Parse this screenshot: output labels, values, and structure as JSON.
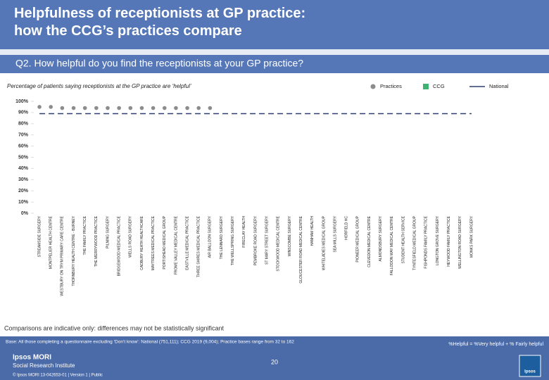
{
  "chart_data": {
    "type": "dot",
    "title": "Helpfulness of receptionists at GP practice: how the CCG’s practices compare",
    "question": "Q2. How helpful do you find the receptionists at your GP practice?",
    "subtitle": "Percentage of patients saying receptionists at the GP practice are ‘helpful’",
    "categories": [
      "STREAMSIDE SURGERY",
      "MONTPELIER HEALTH CENTRE",
      "WESTBURY ON TRYM PRIMARY CARE CENTRE",
      "THORNBURY HEALTH CENTRE - BURNEY",
      "THE FAMILY PRACTICE",
      "THE MERRYWOOD PRACTICE",
      "PILNING SURGERY",
      "BRIDGEWOOD MEDICAL PRACTICE",
      "WELLS ROAD SURGERY",
      "CADBURY HEATH HEALTHCARE",
      "MAYTREES MEDICAL PRACTICE",
      "PORTISHEAD MEDICAL GROUP",
      "FROME VALLEY MEDICAL CENTRE",
      "EASTVILLE MEDICAL PRACTICE",
      "THREE SHIRES MEDICAL PRACTICE",
      "AIR BALLOON SURGERY",
      "THE LENNARD SURGERY",
      "THE WELLSPRING SURGERY",
      "FIRECLAY HEALTH",
      "PEMBROKE ROAD SURGERY",
      "ST MARY STREET SURGERY",
      "STOCKWOOD MEDICAL CENTRE",
      "WINSCOMBE SURGERY",
      "GLOUCESTER ROAD MEDICAL CENTRE",
      "HANHAM HEALTH",
      "WHITELADIES MEDICAL GROUP",
      "SEA MILLS SURGERY",
      "HORFIELD HC",
      "PIONEER MEDICAL GROUP",
      "CLEVEDON MEDICAL CENTRE",
      "ALMONDSBURY SURGERY",
      "FALLODON WAY MEDICAL CENTRE",
      "STUDENT HEALTH SERVICE",
      "TYNTESFIELD MEDICAL GROUP",
      "FISHPONDS FAMILY PRACTICE",
      "LONGTON GROVE SURGERY",
      "HEYWOOD FAMILY PRACTICE",
      "WELLINGTON ROAD SURGERY",
      "MONKS PARK SURGERY"
    ],
    "series": [
      {
        "name": "Practices",
        "color": "#8c8c8c",
        "mark": "dot",
        "values": [
          95,
          95,
          94,
          94,
          94,
          94,
          94,
          94,
          94,
          94,
          94,
          94,
          94,
          94,
          94,
          94,
          null,
          null,
          null,
          null,
          null,
          null,
          null,
          null,
          null,
          null,
          null,
          null,
          null,
          null,
          null,
          null,
          null,
          null,
          null,
          null,
          null,
          null,
          null
        ]
      },
      {
        "name": "CCG",
        "color": "#3cb371",
        "mark": "bar",
        "values": [
          null,
          null,
          null,
          null,
          null,
          null,
          null,
          null,
          null,
          null,
          null,
          null,
          null,
          null,
          null,
          null,
          null,
          null,
          null,
          null,
          null,
          null,
          null,
          null,
          null,
          null,
          null,
          null,
          null,
          null,
          null,
          null,
          null,
          null,
          null,
          null,
          null,
          null,
          null
        ]
      },
      {
        "name": "National",
        "color": "#2f3e6e",
        "mark": "line",
        "values": [
          89,
          89,
          89,
          89,
          89,
          89,
          89,
          89,
          89,
          89,
          89,
          89,
          89,
          89,
          89,
          89,
          89,
          89,
          89,
          89,
          89,
          89,
          89,
          89,
          89,
          89,
          89,
          89,
          89,
          89,
          89,
          89,
          89,
          89,
          89,
          89,
          89,
          89,
          89
        ]
      }
    ],
    "ylim": [
      0,
      100
    ],
    "yticks": [
      {
        "value": 0,
        "label": "0%"
      },
      {
        "value": 10,
        "label": "10%"
      },
      {
        "value": 20,
        "label": "20%"
      },
      {
        "value": 30,
        "label": "30%"
      },
      {
        "value": 40,
        "label": "40%"
      },
      {
        "value": 50,
        "label": "50%"
      },
      {
        "value": 60,
        "label": "60%"
      },
      {
        "value": 70,
        "label": "70%"
      },
      {
        "value": 80,
        "label": "80%"
      },
      {
        "value": 90,
        "label": "90%"
      },
      {
        "value": 100,
        "label": "100%"
      }
    ],
    "legend": "top-right",
    "note": "Comparisons are indicative only: differences may not be statistically significant"
  },
  "footer": {
    "base": "Base: All those completing a questionnaire excluding ‘Don’t know’: National (751,111); CCG 2019 (9,004); Practice bases range from 32 to 162",
    "definition": "%Helpful = %Very helpful + % Fairly helpful",
    "page": "20",
    "logo": "Ipsos MORI",
    "institute": "Social Research Institute",
    "copyright": "© Ipsos MORI    13-042653-01 | Version 1 | Public",
    "brand": "Ipsos"
  }
}
